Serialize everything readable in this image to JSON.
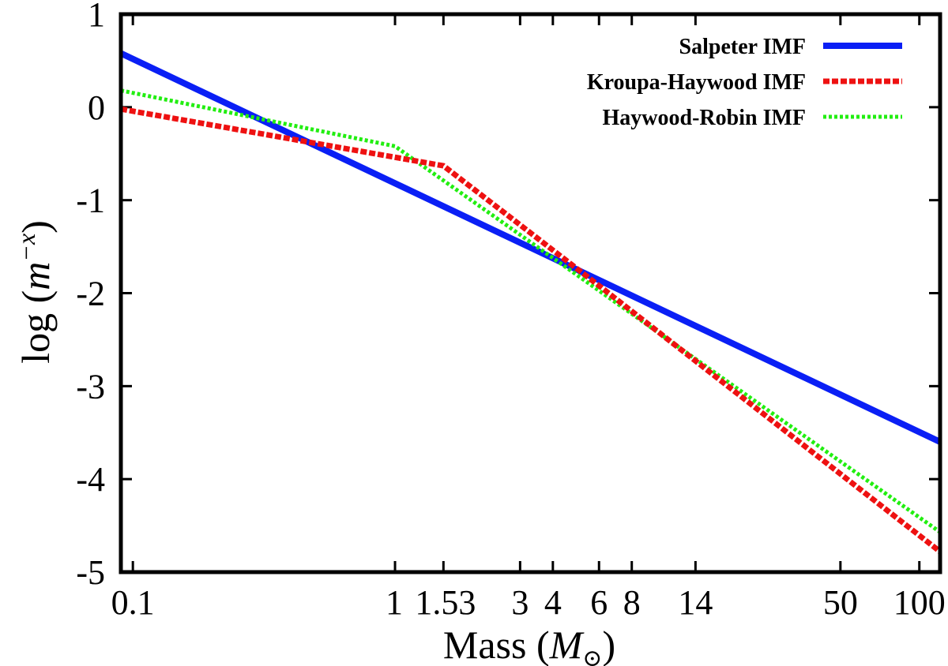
{
  "chart_data": {
    "type": "line",
    "xscale": "log",
    "xlim": [
      0.09,
      120
    ],
    "ylim": [
      -5,
      1
    ],
    "xlabel": "Mass",
    "xlabel_symbol": "M",
    "xlabel_subscript": "⊙",
    "ylabel": "log",
    "ylabel_base": "m",
    "ylabel_exponent": "−x",
    "x_ticks": [
      {
        "value": 0.1,
        "label": "0.1"
      },
      {
        "value": 1,
        "label": "1"
      },
      {
        "value": 1.53,
        "label": "1.53"
      },
      {
        "value": 3,
        "label": "3"
      },
      {
        "value": 4,
        "label": "4"
      },
      {
        "value": 6,
        "label": "6"
      },
      {
        "value": 8,
        "label": "8"
      },
      {
        "value": 14,
        "label": "14"
      },
      {
        "value": 50,
        "label": "50"
      },
      {
        "value": 100,
        "label": "100"
      }
    ],
    "y_ticks": [
      {
        "value": 1,
        "label": "1"
      },
      {
        "value": 0,
        "label": "0"
      },
      {
        "value": -1,
        "label": "-1"
      },
      {
        "value": -2,
        "label": "-2"
      },
      {
        "value": -3,
        "label": "-3"
      },
      {
        "value": -4,
        "label": "-4"
      },
      {
        "value": -5,
        "label": "-5"
      }
    ],
    "legend_position": "top-right",
    "series": [
      {
        "name": "Salpeter IMF",
        "color": "#0a1ff5",
        "style": "solid",
        "points": [
          [
            0.09,
            0.58
          ],
          [
            120,
            -3.6
          ]
        ]
      },
      {
        "name": "Kroupa-Haywood IMF",
        "color": "#ee1111",
        "style": "dashed",
        "points": [
          [
            0.09,
            -0.02
          ],
          [
            1.53,
            -0.63
          ],
          [
            6,
            -1.92
          ],
          [
            120,
            -4.78
          ]
        ]
      },
      {
        "name": "Haywood-Robin IMF",
        "color": "#22ee11",
        "style": "dotted",
        "points": [
          [
            0.09,
            0.18
          ],
          [
            1.0,
            -0.42
          ],
          [
            120,
            -4.57
          ]
        ]
      }
    ]
  }
}
